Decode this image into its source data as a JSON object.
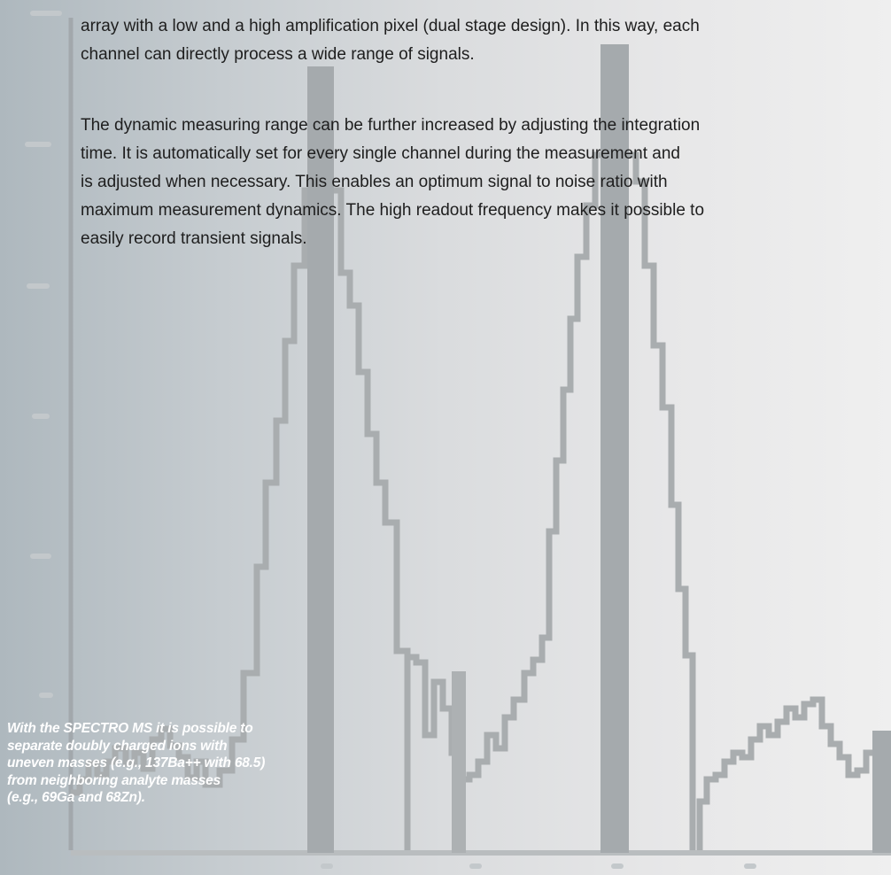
{
  "paragraphs": [
    {
      "lines": [
        "array with a low and a high amplification pixel (dual stage design). In this way, each",
        "channel can directly process a wide range of signals."
      ]
    },
    {
      "lines": [
        "The dynamic measuring range can be further increased by adjusting the integration",
        "time. It is automatically set for every single channel during the measurement and",
        "is adjusted when necessary. This enables an optimum signal to noise ratio with",
        "maximum measurement dynamics. The high readout frequency makes it possible to",
        "easily record transient signals."
      ]
    }
  ],
  "caption": {
    "lines": [
      "With the SPECTRO MS it is possible to",
      "separate doubly charged ions with",
      "uneven masses (e.g., 137Ba++ with 68.5)",
      "from neighboring analyte masses",
      "(e.g., 69Ga and 68Zn)."
    ]
  },
  "colors": {
    "trace": "#a7abad",
    "text": "#1e1e1e",
    "caption": "#ffffff"
  }
}
